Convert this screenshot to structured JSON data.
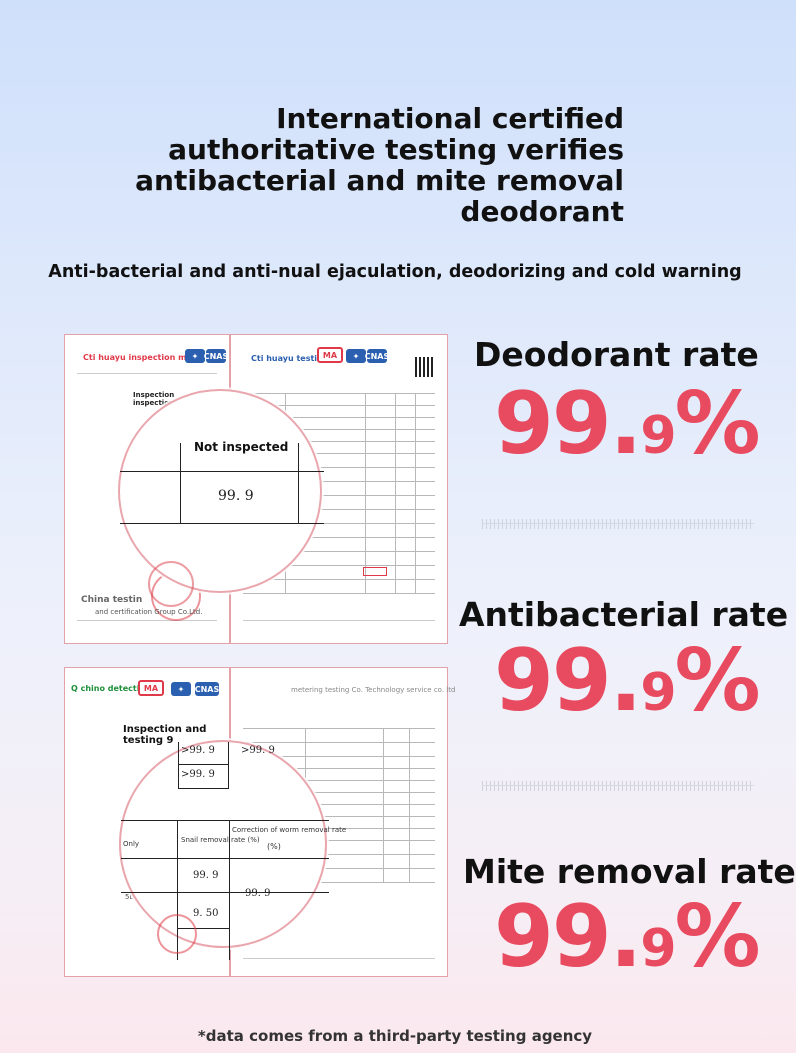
{
  "headline": {
    "line1": "International certified",
    "line2": "authoritative testing verifies",
    "line3": "antibacterial and mite removal",
    "line4": "deodorant"
  },
  "subheadline": "Anti-bacterial and anti-nual ejaculation, deodorizing and cold warning",
  "report1": {
    "brand_left": "Cti huayu inspection ma",
    "brand_right": "Cti huayu testing",
    "cert_logos": [
      "MA",
      "CNAS"
    ],
    "callout_header": "Inspection inspection",
    "magnified_label": "Not inspected",
    "magnified_value": "99. 9",
    "footer_text": "China testin",
    "footer_sub": "and certification Group Co.Ltd."
  },
  "report2": {
    "brand_left": "Q chino detection",
    "cert_logos": [
      "MA",
      "CNAS"
    ],
    "header_right": "metering testing Co. Technology service co. ltd",
    "callout_header": "Inspection and testing 9",
    "row_values": [
      ">99. 9",
      ">99. 9",
      ">99. 9"
    ],
    "col_small_removal": "Snail removal rate (%)",
    "col_correction": "Correction of worm removal rate",
    "col_correction_unit": "(%)",
    "row_only": "Only",
    "row_5b": "5b",
    "val_a": "99. 9",
    "val_b": "99. 9",
    "val_c": "9. 50"
  },
  "metrics": [
    {
      "label": "Deodorant rate",
      "value_main": "99.",
      "value_small": "9",
      "unit": "%"
    },
    {
      "label": "Antibacterial rate",
      "value_main": "99.",
      "value_small": "9",
      "unit": "%"
    },
    {
      "label": "Mite removal rate",
      "value_main": "99.",
      "value_small": "9",
      "unit": "%"
    }
  ],
  "footnote": "*data comes from a third-party testing agency",
  "colors": {
    "accent": "#e84a5f",
    "frame": "#e4a2a8"
  }
}
